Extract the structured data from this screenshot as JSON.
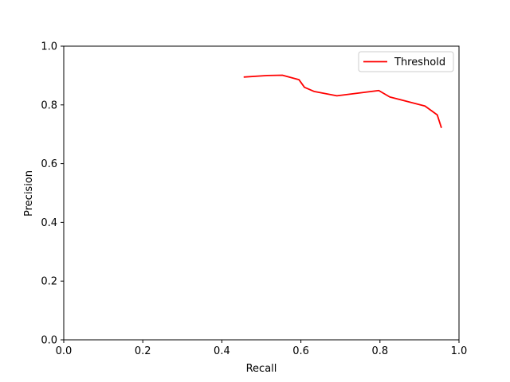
{
  "chart_data": {
    "type": "line",
    "title": "",
    "xlabel": "Recall",
    "ylabel": "Precision",
    "xlim": [
      0.0,
      1.0
    ],
    "ylim": [
      0.0,
      1.0
    ],
    "x_ticks": [
      "0.0",
      "0.2",
      "0.4",
      "0.6",
      "0.8",
      "1.0"
    ],
    "y_ticks": [
      "0.0",
      "0.2",
      "0.4",
      "0.6",
      "0.8",
      "1.0"
    ],
    "grid": false,
    "legend_position": "top-right",
    "series": [
      {
        "name": "Threshold",
        "color": "#ff0000",
        "x": [
          0.457,
          0.515,
          0.553,
          0.595,
          0.609,
          0.633,
          0.691,
          0.797,
          0.825,
          0.914,
          0.945,
          0.955
        ],
        "y": [
          0.895,
          0.9,
          0.901,
          0.886,
          0.86,
          0.846,
          0.831,
          0.849,
          0.827,
          0.796,
          0.766,
          0.724
        ]
      }
    ]
  }
}
